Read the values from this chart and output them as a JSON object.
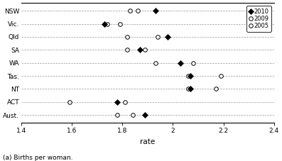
{
  "states": [
    "NSW",
    "Vic.",
    "Qld",
    "SA",
    "WA",
    "Tas.",
    "NT",
    "ACT",
    "Aust."
  ],
  "data_2010": [
    1.93,
    1.73,
    1.98,
    1.87,
    2.03,
    2.07,
    2.07,
    1.78,
    1.89
  ],
  "data_2009": [
    1.86,
    1.79,
    1.82,
    1.82,
    1.93,
    2.06,
    2.06,
    1.81,
    1.84
  ],
  "data_2005": [
    1.83,
    1.74,
    1.94,
    1.89,
    2.08,
    2.19,
    2.17,
    1.59,
    1.78
  ],
  "xlim": [
    1.4,
    2.4
  ],
  "xlabel": "rate",
  "xticks": [
    1.4,
    1.6,
    1.8,
    2.0,
    2.2,
    2.4
  ],
  "legend_labels": [
    "2010",
    "2009",
    "2005"
  ],
  "footnote": "(a) Births per woman.",
  "grid_color": "#999999",
  "bg_color": "white",
  "markersize_diamond": 4,
  "markersize_circle": 4,
  "legend_markersize_diamond": 4,
  "legend_markersize_circle": 4
}
